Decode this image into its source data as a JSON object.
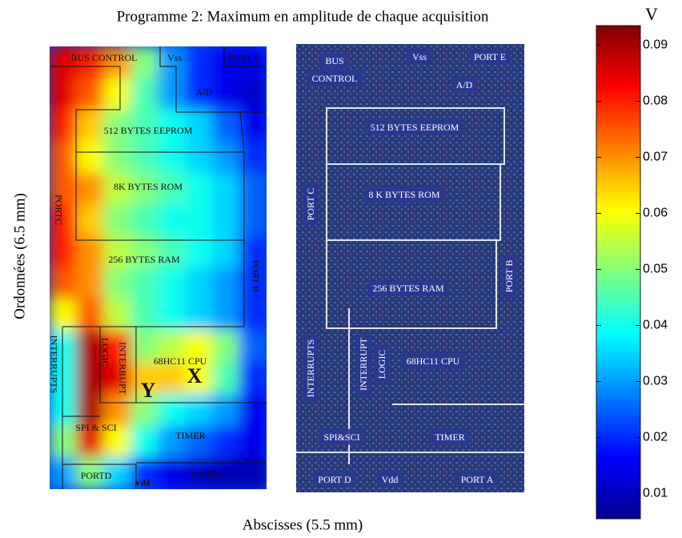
{
  "chart_data": {
    "type": "heatmap",
    "title": "Programme 2: Maximum en amplitude de chaque acquisition",
    "x_label": "Abscisses (5.5 mm)",
    "y_label": "Ordonnées (6.5 mm)",
    "colorbar": {
      "label": "V",
      "clim": [
        0.0055,
        0.0935
      ],
      "ticks": [
        0.01,
        0.02,
        0.03,
        0.04,
        0.05,
        0.06,
        0.07,
        0.08,
        0.09
      ],
      "colormap": "jet"
    },
    "z": [
      [
        0.085,
        0.08,
        0.07,
        0.05,
        0.03,
        0.02,
        0.015,
        0.015
      ],
      [
        0.085,
        0.075,
        0.06,
        0.045,
        0.03,
        0.02,
        0.015,
        0.012
      ],
      [
        0.08,
        0.065,
        0.05,
        0.045,
        0.04,
        0.035,
        0.025,
        0.015
      ],
      [
        0.075,
        0.06,
        0.05,
        0.045,
        0.04,
        0.035,
        0.03,
        0.02
      ],
      [
        0.075,
        0.07,
        0.055,
        0.05,
        0.045,
        0.04,
        0.035,
        0.025
      ],
      [
        0.08,
        0.065,
        0.05,
        0.045,
        0.04,
        0.04,
        0.035,
        0.025
      ],
      [
        0.08,
        0.07,
        0.055,
        0.05,
        0.045,
        0.04,
        0.035,
        0.02
      ],
      [
        0.075,
        0.07,
        0.05,
        0.045,
        0.04,
        0.035,
        0.03,
        0.02
      ],
      [
        0.06,
        0.075,
        0.055,
        0.045,
        0.04,
        0.035,
        0.03,
        0.02
      ],
      [
        0.04,
        0.09,
        0.08,
        0.05,
        0.055,
        0.06,
        0.05,
        0.025
      ],
      [
        0.04,
        0.09,
        0.085,
        0.065,
        0.065,
        0.06,
        0.045,
        0.02
      ],
      [
        0.04,
        0.09,
        0.07,
        0.05,
        0.04,
        0.035,
        0.03,
        0.015
      ],
      [
        0.05,
        0.085,
        0.06,
        0.04,
        0.03,
        0.025,
        0.02,
        0.015
      ],
      [
        0.03,
        0.05,
        0.035,
        0.02,
        0.015,
        0.012,
        0.01,
        0.01
      ]
    ],
    "map_labels": [
      "BUS CONTROL",
      "Vss",
      "PORT E",
      "A/D",
      "512 BYTES EEPROM",
      "8K BYTES ROM",
      "256 BYTES RAM",
      "PORTC",
      "PORT B",
      "INTERRUPTS",
      "LOGIC",
      "INTERRUPT",
      "68HC11 CPU",
      "X",
      "Y",
      "SPI & SCI",
      "TIMER",
      "PORTD",
      "Vdd",
      "PORTA"
    ],
    "die_labels": [
      "BUS",
      "CONTROL",
      "Vss",
      "PORT E",
      "A/D",
      "512 BYTES EEPROM",
      "8 K BYTES ROM",
      "PORT C",
      "256 BYTES RAM",
      "PORT B",
      "INTERRUPTS",
      "INTERRUPT",
      "LOGIC",
      "68HC11 CPU",
      "SPI&SCI",
      "TIMER",
      "PORT D",
      "Vdd",
      "PORT A"
    ]
  }
}
